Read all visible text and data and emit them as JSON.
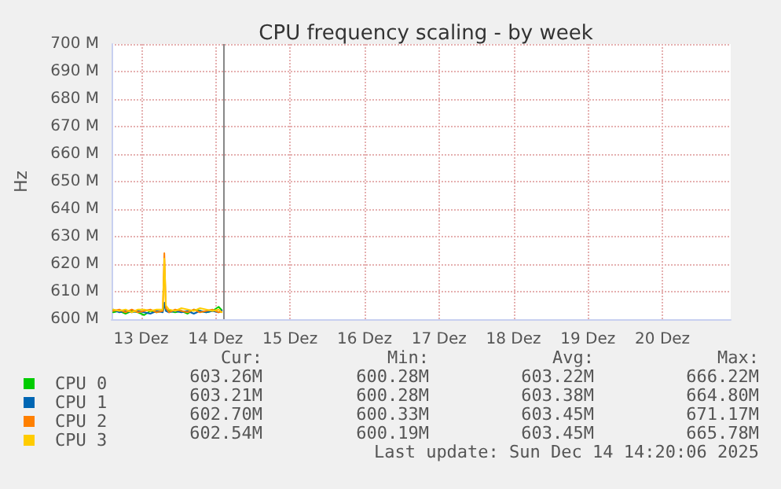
{
  "chart_data": {
    "type": "line",
    "title": "CPU frequency scaling - by week",
    "ylabel": "Hz",
    "x": [
      "2025-12-13T03:00",
      "2025-12-13T05:00",
      "2025-12-13T07:00",
      "2025-12-13T09:00",
      "2025-12-13T11:00",
      "2025-12-13T13:00",
      "2025-12-13T15:00",
      "2025-12-13T17:00",
      "2025-12-13T19:00",
      "2025-12-13T19:30",
      "2025-12-13T20:00",
      "2025-12-13T21:00",
      "2025-12-13T23:00",
      "2025-12-14T01:00",
      "2025-12-14T03:00",
      "2025-12-14T05:00",
      "2025-12-14T07:00",
      "2025-12-14T09:00",
      "2025-12-14T11:00",
      "2025-12-14T13:00",
      "2025-12-14T14:00"
    ],
    "series": [
      {
        "name": "CPU 0",
        "color": "#00cc00",
        "values": [
          602.5,
          603,
          602,
          603,
          602.5,
          601.5,
          603,
          602.5,
          603,
          605,
          603.5,
          603,
          602.5,
          603,
          602,
          603.5,
          603,
          602.5,
          603,
          604.5,
          603.3
        ]
      },
      {
        "name": "CPU 1",
        "color": "#0066b3",
        "values": [
          603.5,
          602.5,
          603,
          602.5,
          603,
          602.5,
          602,
          603,
          602.5,
          606,
          603,
          602.5,
          603,
          602.5,
          603,
          602,
          603,
          602.5,
          603,
          602.5,
          603.2
        ]
      },
      {
        "name": "CPU 2",
        "color": "#ff8000",
        "values": [
          603,
          603.5,
          602.5,
          603.5,
          602.5,
          603,
          603.5,
          602.5,
          603,
          624,
          604,
          602.5,
          603.5,
          603,
          602.5,
          603.5,
          602.5,
          603,
          603.5,
          602.5,
          602.7
        ]
      },
      {
        "name": "CPU 3",
        "color": "#ffcc00",
        "values": [
          603.5,
          603,
          603.5,
          602.5,
          603.5,
          603.5,
          603,
          603.5,
          603.5,
          622,
          605,
          603.5,
          603,
          604,
          603.5,
          603,
          604,
          603.5,
          603,
          603.5,
          602.5
        ]
      }
    ],
    "xlim": [
      "2025-12-13T02:30",
      "2025-12-21T10:00"
    ],
    "xticks": [
      {
        "value": "2025-12-13T12:00",
        "label": "13 Dez"
      },
      {
        "value": "2025-12-14T12:00",
        "label": "14 Dez"
      },
      {
        "value": "2025-12-15T12:00",
        "label": "15 Dez"
      },
      {
        "value": "2025-12-16T12:00",
        "label": "16 Dez"
      },
      {
        "value": "2025-12-17T12:00",
        "label": "17 Dez"
      },
      {
        "value": "2025-12-18T12:00",
        "label": "18 Dez"
      },
      {
        "value": "2025-12-19T12:00",
        "label": "19 Dez"
      },
      {
        "value": "2025-12-20T12:00",
        "label": "20 Dez"
      }
    ],
    "ylim": [
      600,
      700
    ],
    "yticks": [
      {
        "value": 600,
        "label": "600 M"
      },
      {
        "value": 610,
        "label": "610 M"
      },
      {
        "value": 620,
        "label": "620 M"
      },
      {
        "value": 630,
        "label": "630 M"
      },
      {
        "value": 640,
        "label": "640 M"
      },
      {
        "value": 650,
        "label": "650 M"
      },
      {
        "value": 660,
        "label": "660 M"
      },
      {
        "value": 670,
        "label": "670 M"
      },
      {
        "value": 680,
        "label": "680 M"
      },
      {
        "value": 690,
        "label": "690 M"
      },
      {
        "value": 700,
        "label": "700 M"
      }
    ],
    "ref_lines": [
      {
        "axis": "x",
        "value": "2025-12-14T14:20",
        "color": "#888888"
      }
    ],
    "grid": true,
    "legend": "bottom left",
    "marker": "none",
    "line_style": "solid",
    "annotations": [
      "Cur:",
      "Min:",
      "Avg:",
      "Max:",
      "603.26M",
      "600.28M",
      "603.22M",
      "666.22M",
      "603.21M",
      "600.28M",
      "603.38M",
      "664.80M",
      "602.70M",
      "600.33M",
      "603.45M",
      "671.17M",
      "602.54M",
      "600.19M",
      "603.45M",
      "665.78M",
      "Last update: Sun Dec 14 14:20:06 2025"
    ]
  }
}
